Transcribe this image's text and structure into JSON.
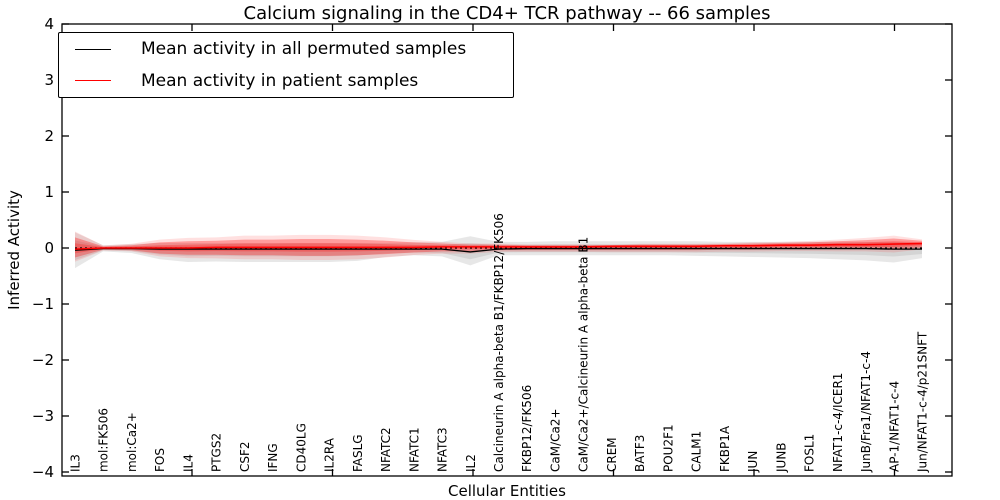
{
  "title": "Calcium signaling in the CD4+ TCR pathway -- 66 samples",
  "legend": {
    "items": [
      {
        "label": "Mean activity in all permuted samples",
        "color": "#000000"
      },
      {
        "label": "Mean activity in patient samples",
        "color": "#ff0000"
      }
    ]
  },
  "axes": {
    "ylabel": "Inferred Activity",
    "xlabel": "Cellular Entities",
    "yticks": [
      "4",
      "3",
      "2",
      "1",
      "0",
      "−1",
      "−2",
      "−3",
      "−4"
    ],
    "ylim": [
      -4,
      4
    ],
    "grid": false,
    "legend_position": "upper left"
  },
  "chart_data": {
    "type": "line",
    "title": "Calcium signaling in the CD4+ TCR pathway -- 66 samples",
    "xlabel": "Cellular Entities",
    "ylabel": "Inferred Activity",
    "ylim": [
      -4,
      4
    ],
    "zero_line": 0,
    "categories": [
      "IL3",
      "mol:FK506",
      "mol:Ca2+",
      "FOS",
      "IL4",
      "PTGS2",
      "CSF2",
      "IFNG",
      "CD40LG",
      "IL2RA",
      "FASLG",
      "NFATC2",
      "NFATC1",
      "NFATC3",
      "IL2",
      "Calcineurin A alpha-beta B1/FKBP12/FK506",
      "FKBP12/FK506",
      "CaM/Ca2+",
      "CaM/Ca2+/Calcineurin A alpha-beta B1",
      "CREM",
      "BATF3",
      "POU2F1",
      "CALM1",
      "FKBP1A",
      "JUN",
      "JUNB",
      "FOSL1",
      "NFAT1-c-4/ICER1",
      "JunB/Fra1/NFAT1-c-4",
      "AP-1/NFAT1-c-4",
      "Jun/NFAT1-c-4/p21SNFT"
    ],
    "series": [
      {
        "name": "Mean activity in all permuted samples",
        "color": "#000000",
        "values": [
          -0.04,
          -0.01,
          -0.01,
          -0.02,
          -0.02,
          -0.02,
          -0.02,
          -0.02,
          -0.02,
          -0.02,
          -0.02,
          -0.02,
          -0.02,
          -0.02,
          -0.07,
          -0.02,
          -0.01,
          -0.01,
          -0.01,
          -0.01,
          -0.01,
          -0.01,
          -0.01,
          -0.01,
          -0.01,
          -0.01,
          -0.01,
          -0.01,
          -0.01,
          -0.02,
          -0.02
        ]
      },
      {
        "name": "Mean activity in patient samples",
        "color": "#ff0000",
        "values": [
          -0.02,
          0.0,
          0.0,
          0.0,
          0.0,
          0.01,
          0.01,
          0.01,
          0.01,
          0.01,
          0.01,
          0.01,
          0.01,
          0.02,
          0.02,
          0.02,
          0.02,
          0.02,
          0.02,
          0.03,
          0.03,
          0.03,
          0.03,
          0.04,
          0.04,
          0.05,
          0.05,
          0.06,
          0.06,
          0.07,
          0.08
        ]
      }
    ],
    "bands": [
      {
        "name": "permuted samples spread",
        "color": "#aaaaaa",
        "hi": [
          0.28,
          0.05,
          0.07,
          0.09,
          0.09,
          0.09,
          0.09,
          0.09,
          0.09,
          0.09,
          0.09,
          0.09,
          0.1,
          0.11,
          0.21,
          0.11,
          0.11,
          0.12,
          0.12,
          0.12,
          0.12,
          0.12,
          0.12,
          0.11,
          0.11,
          0.11,
          0.11,
          0.11,
          0.11,
          0.11,
          0.09
        ],
        "lo": [
          -0.36,
          -0.06,
          -0.09,
          -0.2,
          -0.25,
          -0.24,
          -0.25,
          -0.25,
          -0.25,
          -0.25,
          -0.23,
          -0.16,
          -0.13,
          -0.15,
          -0.31,
          -0.13,
          -0.13,
          -0.13,
          -0.13,
          -0.13,
          -0.13,
          -0.13,
          -0.14,
          -0.15,
          -0.16,
          -0.17,
          -0.18,
          -0.2,
          -0.22,
          -0.26,
          -0.18
        ]
      },
      {
        "name": "patient samples spread",
        "color": "#ff0000",
        "hi": [
          0.19,
          0.03,
          0.05,
          0.1,
          0.12,
          0.13,
          0.15,
          0.15,
          0.16,
          0.16,
          0.15,
          0.13,
          0.1,
          0.08,
          0.06,
          0.06,
          0.05,
          0.05,
          0.05,
          0.05,
          0.06,
          0.06,
          0.06,
          0.07,
          0.08,
          0.09,
          0.1,
          0.12,
          0.14,
          0.17,
          0.13
        ],
        "lo": [
          -0.17,
          -0.03,
          -0.04,
          -0.1,
          -0.12,
          -0.12,
          -0.13,
          -0.13,
          -0.14,
          -0.14,
          -0.13,
          -0.11,
          -0.08,
          -0.06,
          -0.06,
          -0.04,
          -0.04,
          -0.04,
          -0.04,
          -0.04,
          -0.04,
          -0.04,
          -0.04,
          -0.03,
          -0.03,
          -0.02,
          -0.02,
          -0.02,
          -0.02,
          -0.03,
          0.01
        ]
      }
    ]
  }
}
